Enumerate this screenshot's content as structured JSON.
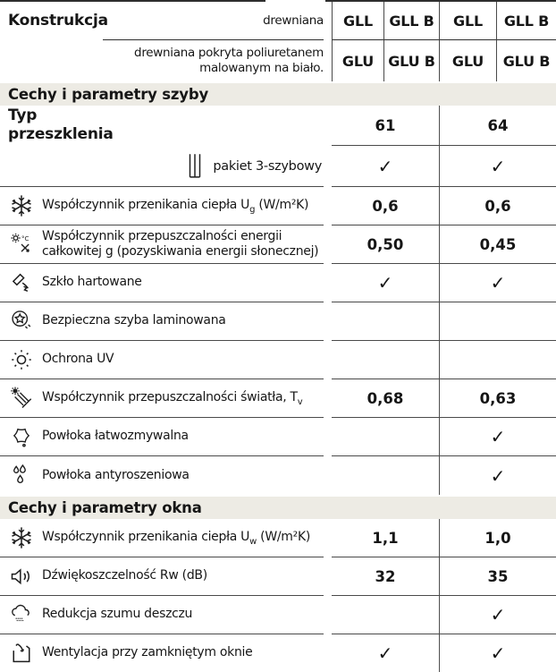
{
  "colors": {
    "section_header_bg": "#edebe4",
    "grid_line": "#4a4a4a",
    "text": "#161616"
  },
  "check_glyph": "✓",
  "header": {
    "title": "Konstrukcja",
    "row1": {
      "material": "drewniana",
      "models": [
        "GLL",
        "GLL B",
        "GLL",
        "GLL B"
      ]
    },
    "row2": {
      "material": "drewniana pokryta poliuretanem malowanym na biało.",
      "models": [
        "GLU",
        "GLU B",
        "GLU",
        "GLU B"
      ]
    }
  },
  "glass_section": {
    "title": "Cechy i parametry szyby",
    "glazing_row": {
      "label": "Typ\nprzeszklenia",
      "values": [
        "61",
        "64"
      ]
    },
    "package_row": {
      "icon": "triple-glazing-icon",
      "label": "pakiet 3-szybowy",
      "values": [
        "✓",
        "✓"
      ]
    },
    "rows": [
      {
        "icon": "snowflake-icon",
        "label_pre": "Współczynnik przenikania ciepła U",
        "label_sub": "g",
        "label_post": " (W/m²K)",
        "values": [
          "0,6",
          "0,6"
        ]
      },
      {
        "icon": "sun-temperature-icon",
        "label_pre": "Współczynnik przepuszczalności energii całkowitej g (pozyskiwania energii słonecznej)",
        "values": [
          "0,50",
          "0,45"
        ]
      },
      {
        "icon": "hammer-icon",
        "label_pre": "Szkło hartowane",
        "values": [
          "✓",
          "✓"
        ]
      },
      {
        "icon": "laminated-glass-icon",
        "label_pre": "Bezpieczna szyba laminowana",
        "values": [
          "",
          ""
        ]
      },
      {
        "icon": "sun-uv-icon",
        "label_pre": "Ochrona UV",
        "values": [
          "",
          ""
        ]
      },
      {
        "icon": "light-transmittance-icon",
        "label_pre": "Współczynnik przepuszczalności światła, T",
        "label_sub": "v",
        "label_post": "",
        "values": [
          "0,68",
          "0,63"
        ]
      },
      {
        "icon": "easy-clean-coating-icon",
        "label_pre": "Powłoka łatwozmywalna",
        "values": [
          "",
          "✓"
        ]
      },
      {
        "icon": "anti-dew-coating-icon",
        "label_pre": "Powłoka antyroszeniowa",
        "values": [
          "",
          "✓"
        ]
      }
    ]
  },
  "window_section": {
    "title": "Cechy i parametry okna",
    "rows": [
      {
        "icon": "snowflake-icon",
        "label_pre": "Współczynnik przenikania ciepła U",
        "label_sub": "w",
        "label_post": " (W/m²K)",
        "values": [
          "1,1",
          "1,0"
        ]
      },
      {
        "icon": "speaker-icon",
        "label_pre": "Dźwiękoszczelność Rw (dB)",
        "values": [
          "32",
          "35"
        ]
      },
      {
        "icon": "rain-cloud-icon",
        "label_pre": "Redukcja szumu deszczu",
        "values": [
          "",
          "✓"
        ]
      },
      {
        "icon": "window-ventilation-icon",
        "label_pre": "Wentylacja przy zamkniętym oknie",
        "values": [
          "✓",
          "✓"
        ]
      }
    ]
  }
}
